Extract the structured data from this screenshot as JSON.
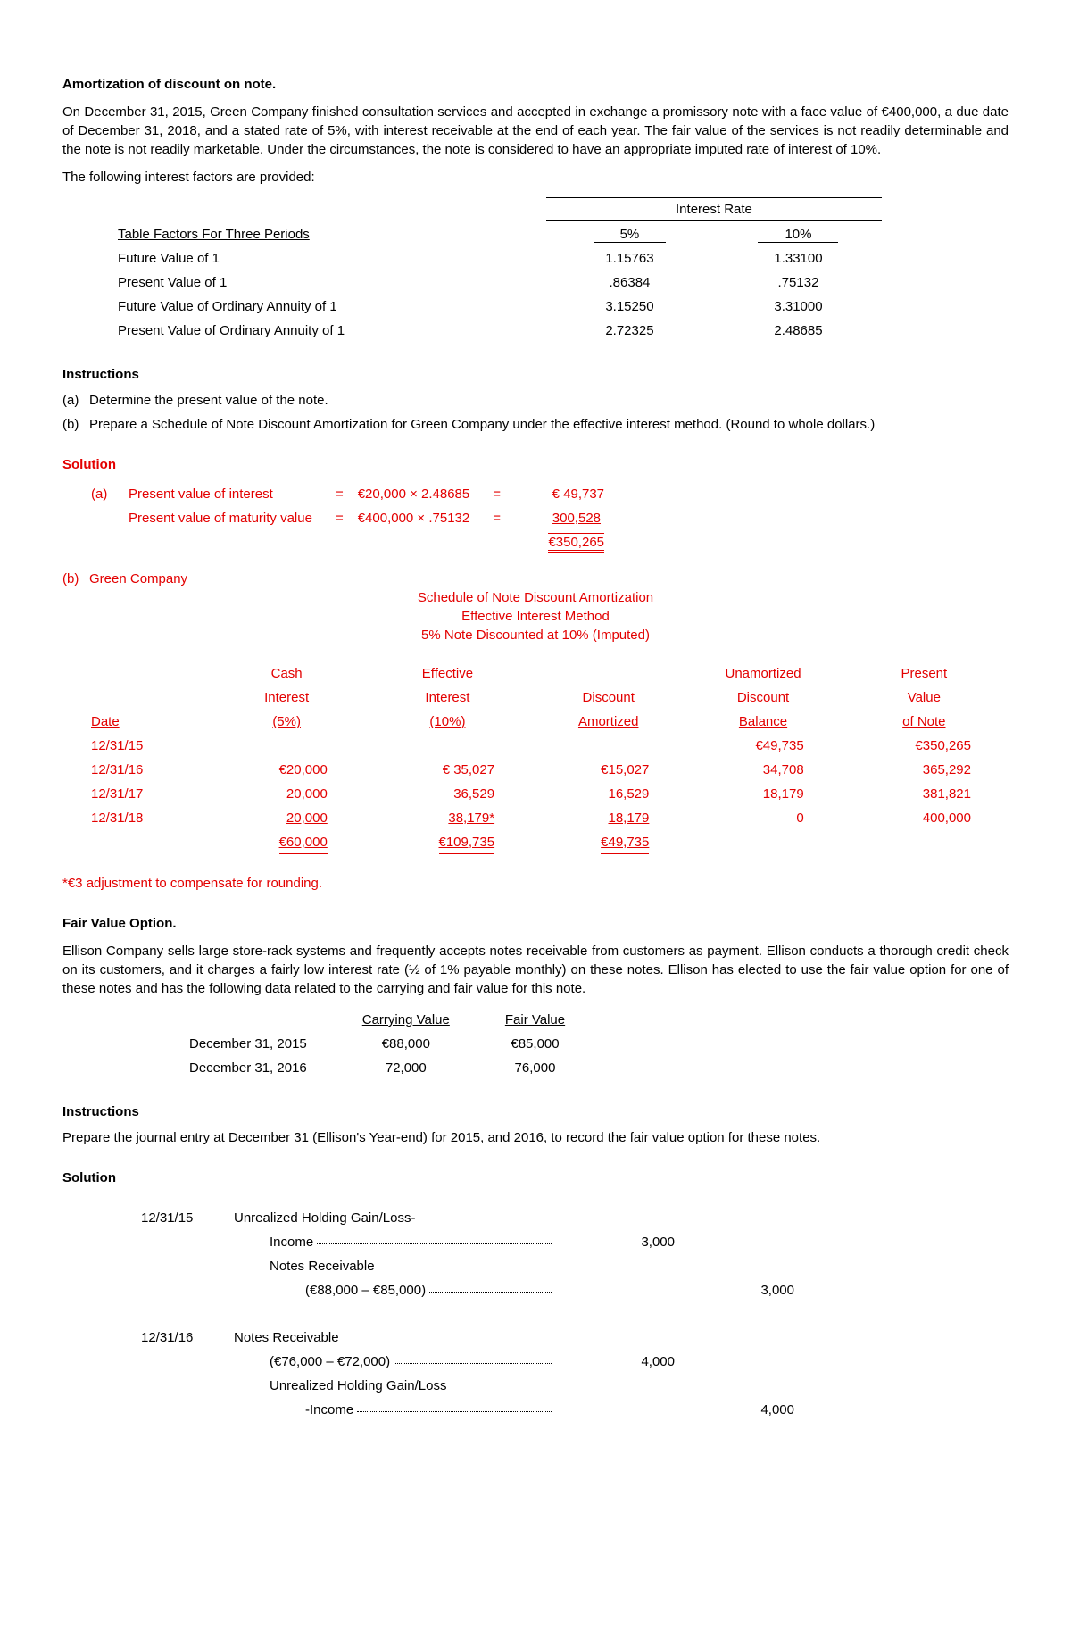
{
  "title1": "Amortization of discount on note.",
  "para1": "On December 31, 2015, Green Company finished consultation services and accepted in exchange a promissory note with a face value of €400,000, a due date of December 31, 2018, and a stated rate of 5%, with interest receivable at the end of each year. The fair value of the services is not readily determinable and the note is not readily marketable. Under the circumstances, the note is considered to have an appropriate imputed rate of interest of 10%.",
  "para2": "The following interest factors are provided:",
  "if": {
    "rate_header": "Interest Rate",
    "col_label": "Table Factors For Three Periods",
    "c5": "5%",
    "c10": "10%",
    "rows": [
      {
        "label": "Future Value of 1",
        "v5": "1.15763",
        "v10": "1.33100"
      },
      {
        "label": "Present Value of 1",
        "v5": ".86384",
        "v10": ".75132"
      },
      {
        "label": "Future Value of Ordinary Annuity of 1",
        "v5": "3.15250",
        "v10": "3.31000"
      },
      {
        "label": "Present Value of Ordinary Annuity of 1",
        "v5": "2.72325",
        "v10": "2.48685"
      }
    ]
  },
  "instructions_title": "Instructions",
  "inst_a": "Determine the present value of the note.",
  "inst_b": "Prepare a Schedule of Note Discount Amortization for Green Company under the effective interest method. (Round to whole dollars.)",
  "solution_title": "Solution",
  "sol_a": {
    "r1_label": "Present value of interest",
    "r1_calc": "€20,000 × 2.48685",
    "r1_val": "€  49,737",
    "r2_label": "Present value of maturity value",
    "r2_calc": "€400,000 × .75132",
    "r2_val": "300,528",
    "total": "€350,265"
  },
  "sol_b_company": "Green Company",
  "sched_title1": "Schedule of Note Discount Amortization",
  "sched_title2": "Effective Interest Method",
  "sched_title3": "5% Note Discounted at 10% (Imputed)",
  "sched_headers": {
    "date": "Date",
    "cash1": "Cash",
    "cash2": "Interest",
    "cash3": "(5%)",
    "eff1": "Effective",
    "eff2": "Interest",
    "eff3": "(10%)",
    "disc1": "Discount",
    "disc2": "Amortized",
    "un1": "Unamortized",
    "un2": "Discount",
    "un3": "Balance",
    "pv1": "Present",
    "pv2": "Value",
    "pv3": "of Note"
  },
  "sched_rows": [
    {
      "date": "12/31/15",
      "cash": "",
      "eff": "",
      "disc": "",
      "un": "€49,735",
      "pv": "€350,265"
    },
    {
      "date": "12/31/16",
      "cash": "€20,000",
      "eff": "€  35,027",
      "disc": "€15,027",
      "un": "34,708",
      "pv": "365,292"
    },
    {
      "date": "12/31/17",
      "cash": "20,000",
      "eff": "36,529",
      "disc": "16,529",
      "un": "18,179",
      "pv": "381,821"
    },
    {
      "date": "12/31/18",
      "cash": "20,000",
      "eff": "38,179*",
      "disc": "18,179",
      "un": "0",
      "pv": "400,000"
    }
  ],
  "sched_totals": {
    "cash": "€60,000",
    "eff": "€109,735",
    "disc": "€49,735"
  },
  "footnote": "*€3 adjustment to compensate for rounding.",
  "title2": "Fair Value Option.",
  "para3": "Ellison Company sells large store-rack systems and frequently accepts notes receivable from customers as payment. Ellison conducts a thorough credit check on its customers, and it charges a fairly low interest rate (½ of 1% payable monthly) on these notes. Ellison has elected to use the fair value option for one of these notes and has the following data related to the carrying and fair value for this note.",
  "fv": {
    "h1": "Carrying Value",
    "h2": "Fair Value",
    "r1_label": "December 31, 2015",
    "r1_cv": "€88,000",
    "r1_fv": "€85,000",
    "r2_label": "December 31, 2016",
    "r2_cv": "72,000",
    "r2_fv": "76,000"
  },
  "inst2_title": "Instructions",
  "inst2_body": "Prepare the journal entry at December 31 (Ellison's Year-end) for 2015, and 2016, to record the fair value option for these notes.",
  "sol2_title": "Solution",
  "je": [
    {
      "date": "12/31/15",
      "lines": [
        {
          "acct": "Unrealized Holding Gain/Loss-",
          "dr": "",
          "cr": "",
          "indent": 0,
          "dots": false
        },
        {
          "acct": "Income",
          "dr": "3,000",
          "cr": "",
          "indent": 1,
          "dots": true
        },
        {
          "acct": "Notes Receivable",
          "dr": "",
          "cr": "",
          "indent": 1,
          "dots": false
        },
        {
          "acct": "(€88,000 – €85,000)",
          "dr": "",
          "cr": "3,000",
          "indent": 2,
          "dots": true
        }
      ]
    },
    {
      "date": "12/31/16",
      "lines": [
        {
          "acct": "Notes Receivable",
          "dr": "",
          "cr": "",
          "indent": 0,
          "dots": false
        },
        {
          "acct": "(€76,000 – €72,000)",
          "dr": "4,000",
          "cr": "",
          "indent": 1,
          "dots": true
        },
        {
          "acct": "Unrealized Holding Gain/Loss",
          "dr": "",
          "cr": "",
          "indent": 1,
          "dots": false
        },
        {
          "acct": "-Income",
          "dr": "",
          "cr": "4,000",
          "indent": 2,
          "dots": true
        }
      ]
    }
  ]
}
